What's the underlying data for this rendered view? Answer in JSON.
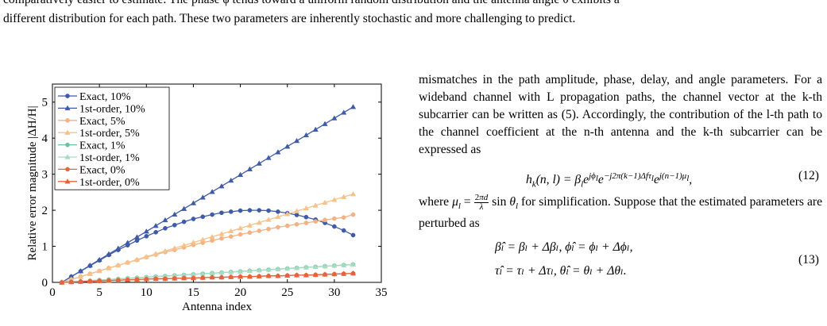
{
  "top_text": {
    "line1": "comparatively easier to estimate. The phase ϕ tends toward a uniform random distribution and the antenna angle θ exhibits a",
    "line2": "different distribution for each path. These two parameters are inherently stochastic and more challenging to predict."
  },
  "right_column": {
    "para1": "mismatches in the path amplitude, phase, delay, and angle parameters. For a wideband channel with L propagation paths, the channel vector at the k-th subcarrier can be written as (5). Accordingly, the contribution of the l-th path to the channel coefficient at the n-th antenna and the k-th subcarrier can be expressed as",
    "eq12": "hₖ(n, l) = βₗe^{jϕₗ}e^{−j2π(k−1)Δfτₗ}e^{j(n−1)μₗ},",
    "eq12_num": "(12)",
    "where_text": "where μₗ = (2πd/λ) sin θₗ for simplification. Suppose that the estimated parameters are perturbed as",
    "eq13_line1": "β̂ₗ = βₗ + Δβₗ,   ϕ̂ₗ = ϕₗ + Δϕₗ,",
    "eq13_line2": "τ̂ₗ = τₗ + Δτₗ,   θ̂ₗ = θₗ + Δθₗ.",
    "eq13_num": "(13)"
  },
  "chart_data": {
    "type": "line",
    "xlabel": "Antenna index",
    "ylabel": "Relative error magnitude |ΔH/H|",
    "xlim": [
      0,
      35
    ],
    "ylim": [
      0,
      5.5
    ],
    "xticks": [
      0,
      5,
      10,
      15,
      20,
      25,
      30,
      35
    ],
    "yticks": [
      0,
      1,
      2,
      3,
      4,
      5
    ],
    "grid": false,
    "legend_position": "top-left",
    "x": [
      1,
      2,
      3,
      4,
      5,
      6,
      7,
      8,
      9,
      10,
      11,
      12,
      13,
      14,
      15,
      16,
      17,
      18,
      19,
      20,
      21,
      22,
      23,
      24,
      25,
      26,
      27,
      28,
      29,
      30,
      31,
      32
    ],
    "series": [
      {
        "name": "Exact, 10%",
        "color": "#3f5ba8",
        "marker": "circle",
        "values": [
          0.0,
          0.16,
          0.31,
          0.46,
          0.61,
          0.76,
          0.9,
          1.03,
          1.16,
          1.28,
          1.39,
          1.5,
          1.59,
          1.68,
          1.76,
          1.82,
          1.88,
          1.93,
          1.96,
          1.99,
          2.0,
          2.0,
          1.99,
          1.96,
          1.92,
          1.87,
          1.81,
          1.74,
          1.65,
          1.55,
          1.44,
          1.31
        ]
      },
      {
        "name": "1st-order, 10%",
        "color": "#3f5ba8",
        "marker": "triangle",
        "values": [
          0.0,
          0.157,
          0.314,
          0.471,
          0.628,
          0.785,
          0.942,
          1.099,
          1.256,
          1.413,
          1.57,
          1.727,
          1.884,
          2.041,
          2.198,
          2.355,
          2.512,
          2.669,
          2.826,
          2.983,
          3.14,
          3.297,
          3.454,
          3.611,
          3.768,
          3.925,
          4.082,
          4.239,
          4.396,
          4.553,
          4.71,
          4.867
        ]
      },
      {
        "name": "Exact, 5%",
        "color": "#f4b184",
        "marker": "circle",
        "values": [
          0.0,
          0.08,
          0.16,
          0.24,
          0.32,
          0.4,
          0.47,
          0.55,
          0.62,
          0.7,
          0.77,
          0.84,
          0.9,
          0.97,
          1.04,
          1.1,
          1.16,
          1.22,
          1.27,
          1.33,
          1.38,
          1.43,
          1.48,
          1.53,
          1.57,
          1.61,
          1.65,
          1.69,
          1.73,
          1.77,
          1.8,
          1.88
        ]
      },
      {
        "name": "1st-order, 5%",
        "color": "#f6c28a",
        "marker": "triangle",
        "values": [
          0.0,
          0.079,
          0.158,
          0.237,
          0.316,
          0.395,
          0.474,
          0.553,
          0.632,
          0.711,
          0.79,
          0.869,
          0.948,
          1.027,
          1.106,
          1.185,
          1.264,
          1.343,
          1.422,
          1.501,
          1.58,
          1.659,
          1.738,
          1.817,
          1.896,
          1.975,
          2.054,
          2.133,
          2.212,
          2.291,
          2.37,
          2.449
        ]
      },
      {
        "name": "Exact, 1%",
        "color": "#6cc3a0",
        "marker": "circle",
        "values": [
          0.0,
          0.016,
          0.032,
          0.048,
          0.064,
          0.08,
          0.096,
          0.112,
          0.128,
          0.144,
          0.16,
          0.176,
          0.192,
          0.208,
          0.224,
          0.24,
          0.256,
          0.272,
          0.288,
          0.304,
          0.32,
          0.336,
          0.352,
          0.368,
          0.384,
          0.4,
          0.416,
          0.432,
          0.448,
          0.464,
          0.48,
          0.496
        ]
      },
      {
        "name": "1st-order, 1%",
        "color": "#a6dcc0",
        "marker": "triangle",
        "values": [
          0.0,
          0.016,
          0.032,
          0.048,
          0.064,
          0.08,
          0.096,
          0.112,
          0.128,
          0.144,
          0.16,
          0.176,
          0.192,
          0.208,
          0.224,
          0.24,
          0.256,
          0.272,
          0.288,
          0.304,
          0.32,
          0.336,
          0.352,
          0.368,
          0.384,
          0.4,
          0.416,
          0.432,
          0.448,
          0.464,
          0.48,
          0.496
        ]
      },
      {
        "name": "Exact, 0%",
        "color": "#e8623c",
        "marker": "circle",
        "values": [
          0.0,
          0.01,
          0.02,
          0.03,
          0.04,
          0.05,
          0.06,
          0.07,
          0.08,
          0.09,
          0.1,
          0.1,
          0.11,
          0.12,
          0.12,
          0.13,
          0.14,
          0.14,
          0.15,
          0.16,
          0.16,
          0.17,
          0.18,
          0.18,
          0.19,
          0.2,
          0.2,
          0.21,
          0.22,
          0.23,
          0.24,
          0.25
        ]
      },
      {
        "name": "1st-order, 0%",
        "color": "#e8623c",
        "marker": "triangle",
        "values": [
          0.0,
          0.01,
          0.02,
          0.03,
          0.04,
          0.05,
          0.06,
          0.07,
          0.08,
          0.09,
          0.1,
          0.1,
          0.11,
          0.12,
          0.12,
          0.13,
          0.14,
          0.14,
          0.15,
          0.16,
          0.16,
          0.17,
          0.18,
          0.18,
          0.19,
          0.2,
          0.2,
          0.21,
          0.22,
          0.23,
          0.24,
          0.25
        ]
      }
    ]
  }
}
